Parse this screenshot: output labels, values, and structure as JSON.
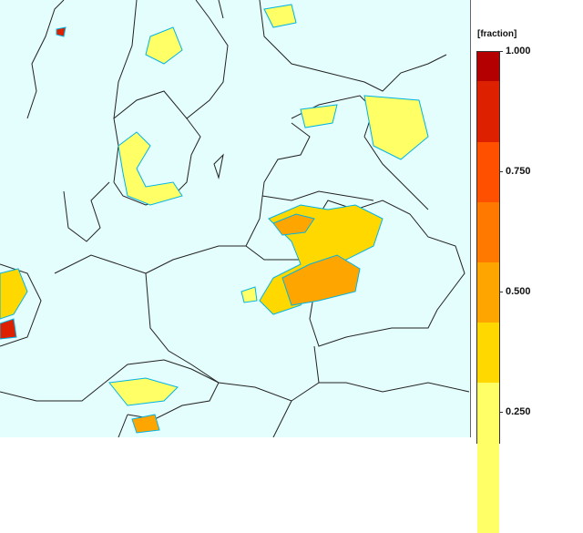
{
  "legend": {
    "unit": "[fraction]",
    "ticks": [
      {
        "label": "1.000",
        "value": 1.0
      },
      {
        "label": "0.750",
        "value": 0.75
      },
      {
        "label": "0.500",
        "value": 0.5
      },
      {
        "label": "0.250",
        "value": 0.25
      }
    ],
    "bands": [
      {
        "from": 0.94,
        "to": 1.0,
        "color": "#b40000"
      },
      {
        "from": 0.8125,
        "to": 0.94,
        "color": "#dc2000"
      },
      {
        "from": 0.6875,
        "to": 0.8125,
        "color": "#ff5000"
      },
      {
        "from": 0.5625,
        "to": 0.6875,
        "color": "#ff7800"
      },
      {
        "from": 0.4375,
        "to": 0.5625,
        "color": "#ffa500"
      },
      {
        "from": 0.3125,
        "to": 0.4375,
        "color": "#ffd800"
      },
      {
        "from": 0.0,
        "to": 0.3125,
        "color": "#ffff66"
      }
    ]
  },
  "map": {
    "background_color": "#e4fdfd",
    "contour_color": "#00b4e6",
    "border_color": "#222222"
  }
}
